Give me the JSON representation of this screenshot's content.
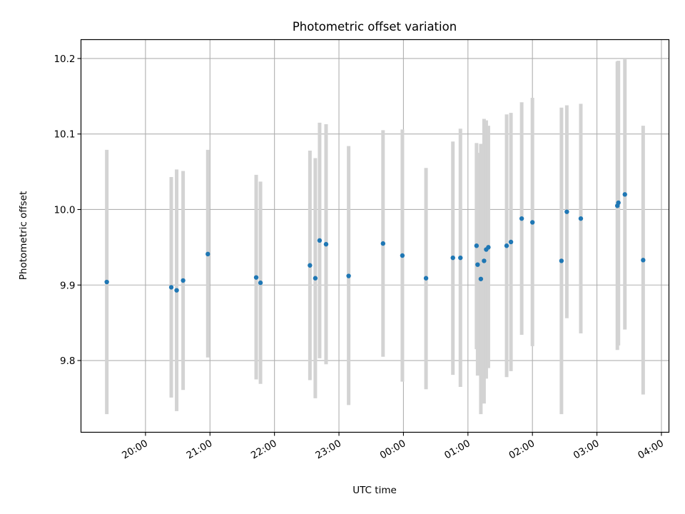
{
  "chart_data": {
    "type": "scatter",
    "title": "Photometric offset variation",
    "xlabel": "UTC time",
    "ylabel": "Photometric offset",
    "x_tick_labels": [
      "20:00",
      "21:00",
      "22:00",
      "23:00",
      "00:00",
      "01:00",
      "02:00",
      "03:00",
      "04:00"
    ],
    "x_ticks": [
      "2000-01-01T20:00",
      "2000-01-01T21:00",
      "2000-01-01T22:00",
      "2000-01-01T23:00",
      "2000-01-02T00:00",
      "2000-01-02T01:00",
      "2000-01-02T02:00",
      "2000-01-02T03:00",
      "2000-01-02T04:00"
    ],
    "xlim": [
      "2000-01-01T19:00",
      "2000-01-02T04:07"
    ],
    "y_ticks": [
      9.8,
      9.9,
      10.0,
      10.1,
      10.2
    ],
    "y_tick_labels": [
      "9.8",
      "9.9",
      "10.0",
      "10.1",
      "10.2"
    ],
    "ylim": [
      9.705,
      10.225
    ],
    "grid": true,
    "colors": {
      "point": "#1f77b4",
      "errorbar": "#d3d3d3",
      "grid": "#b0b0b0"
    },
    "points": [
      {
        "t": "2000-01-01T19:24",
        "y": 9.904,
        "low": 9.729,
        "high": 10.079
      },
      {
        "t": "2000-01-01T20:24",
        "y": 9.897,
        "low": 9.751,
        "high": 10.043
      },
      {
        "t": "2000-01-01T20:29",
        "y": 9.893,
        "low": 9.733,
        "high": 10.053
      },
      {
        "t": "2000-01-01T20:35",
        "y": 9.906,
        "low": 9.761,
        "high": 10.051
      },
      {
        "t": "2000-01-01T20:58",
        "y": 9.941,
        "low": 9.804,
        "high": 10.079
      },
      {
        "t": "2000-01-01T21:43",
        "y": 9.91,
        "low": 9.775,
        "high": 10.046
      },
      {
        "t": "2000-01-01T21:47",
        "y": 9.903,
        "low": 9.769,
        "high": 10.037
      },
      {
        "t": "2000-01-01T22:33",
        "y": 9.926,
        "low": 9.774,
        "high": 10.078
      },
      {
        "t": "2000-01-01T22:38",
        "y": 9.909,
        "low": 9.75,
        "high": 10.068
      },
      {
        "t": "2000-01-01T22:42",
        "y": 9.959,
        "low": 9.803,
        "high": 10.115
      },
      {
        "t": "2000-01-01T22:48",
        "y": 9.954,
        "low": 9.795,
        "high": 10.113
      },
      {
        "t": "2000-01-01T23:09",
        "y": 9.912,
        "low": 9.741,
        "high": 10.084
      },
      {
        "t": "2000-01-01T23:41",
        "y": 9.955,
        "low": 9.805,
        "high": 10.105
      },
      {
        "t": "2000-01-01T23:59",
        "y": 9.939,
        "low": 9.772,
        "high": 10.106
      },
      {
        "t": "2000-01-02T00:21",
        "y": 9.909,
        "low": 9.762,
        "high": 10.055
      },
      {
        "t": "2000-01-02T00:46",
        "y": 9.936,
        "low": 9.781,
        "high": 10.09
      },
      {
        "t": "2000-01-02T00:53",
        "y": 9.936,
        "low": 9.765,
        "high": 10.107
      },
      {
        "t": "2000-01-02T01:08",
        "y": 9.952,
        "low": 9.815,
        "high": 10.088
      },
      {
        "t": "2000-01-02T01:09",
        "y": 9.927,
        "low": 9.78,
        "high": 10.075
      },
      {
        "t": "2000-01-02T01:12",
        "y": 9.908,
        "low": 9.729,
        "high": 10.087
      },
      {
        "t": "2000-01-02T01:15",
        "y": 9.932,
        "low": 9.743,
        "high": 10.12
      },
      {
        "t": "2000-01-02T01:17",
        "y": 9.947,
        "low": 9.776,
        "high": 10.118
      },
      {
        "t": "2000-01-02T01:19",
        "y": 9.95,
        "low": 9.79,
        "high": 10.111
      },
      {
        "t": "2000-01-02T01:36",
        "y": 9.952,
        "low": 9.778,
        "high": 10.126
      },
      {
        "t": "2000-01-02T01:40",
        "y": 9.957,
        "low": 9.786,
        "high": 10.128
      },
      {
        "t": "2000-01-02T01:50",
        "y": 9.988,
        "low": 9.834,
        "high": 10.142
      },
      {
        "t": "2000-01-02T02:00",
        "y": 9.983,
        "low": 9.819,
        "high": 10.148
      },
      {
        "t": "2000-01-02T02:27",
        "y": 9.932,
        "low": 9.729,
        "high": 10.135
      },
      {
        "t": "2000-01-02T02:32",
        "y": 9.997,
        "low": 9.856,
        "high": 10.138
      },
      {
        "t": "2000-01-02T02:45",
        "y": 9.988,
        "low": 9.836,
        "high": 10.14
      },
      {
        "t": "2000-01-02T03:19",
        "y": 10.005,
        "low": 9.814,
        "high": 10.196
      },
      {
        "t": "2000-01-02T03:20",
        "y": 10.009,
        "low": 9.82,
        "high": 10.197
      },
      {
        "t": "2000-01-02T03:26",
        "y": 10.02,
        "low": 9.841,
        "high": 10.199
      },
      {
        "t": "2000-01-02T03:43",
        "y": 9.933,
        "low": 9.755,
        "high": 10.111
      }
    ]
  }
}
